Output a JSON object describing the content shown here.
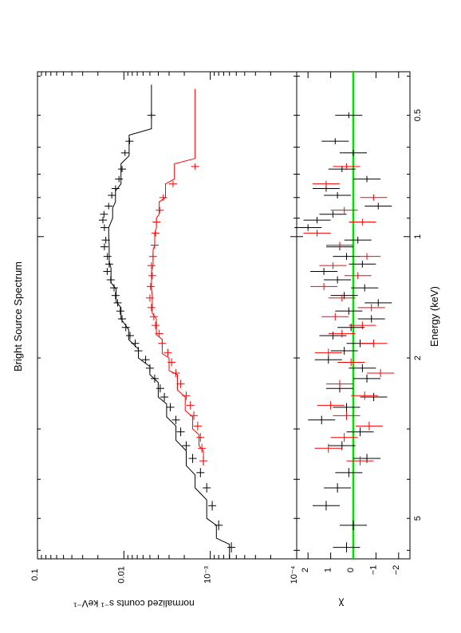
{
  "chart_data": [
    {
      "type": "line",
      "title": "Bright Source Spectrum",
      "xlabel": "Energy (keV)",
      "ylabel": "normalized counts s⁻¹ keV⁻¹",
      "xscale": "log",
      "yscale": "log",
      "xlim": [
        0.39,
        6.3
      ],
      "ylim": [
        0.0001,
        0.1
      ],
      "ytick_labels": [
        {
          "value": 0.1,
          "label": "0.1"
        },
        {
          "value": 0.01,
          "label": "0.01"
        },
        {
          "value": 0.001,
          "label": "10⁻³"
        },
        {
          "value": 0.0001,
          "label": "10⁻⁴"
        }
      ],
      "series": [
        {
          "color": "#000000",
          "model": [
            [
              0.42,
              0.0048
            ],
            [
              0.54,
              0.0048
            ],
            [
              0.56,
              0.0087
            ],
            [
              0.63,
              0.0087
            ],
            [
              0.66,
              0.0108
            ],
            [
              0.74,
              0.0108
            ],
            [
              0.77,
              0.0125
            ],
            [
              0.82,
              0.0125
            ],
            [
              0.85,
              0.0135
            ],
            [
              0.9,
              0.0135
            ],
            [
              0.95,
              0.015
            ],
            [
              1.0,
              0.015
            ],
            [
              1.05,
              0.0148
            ],
            [
              1.15,
              0.0148
            ],
            [
              1.2,
              0.0141
            ],
            [
              1.3,
              0.0141
            ],
            [
              1.35,
              0.0123
            ],
            [
              1.45,
              0.0123
            ],
            [
              1.5,
              0.0108
            ],
            [
              1.6,
              0.0108
            ],
            [
              1.7,
              0.0088
            ],
            [
              1.8,
              0.0088
            ],
            [
              1.9,
              0.0068
            ],
            [
              2.0,
              0.0068
            ],
            [
              2.1,
              0.005
            ],
            [
              2.2,
              0.005
            ],
            [
              2.3,
              0.004
            ],
            [
              2.5,
              0.004
            ],
            [
              2.6,
              0.0032
            ],
            [
              2.8,
              0.0032
            ],
            [
              2.95,
              0.0025
            ],
            [
              3.2,
              0.0025
            ],
            [
              3.4,
              0.0019
            ],
            [
              3.7,
              0.0019
            ],
            [
              3.9,
              0.0015
            ],
            [
              4.2,
              0.0015
            ],
            [
              4.5,
              0.0011
            ],
            [
              5.0,
              0.0011
            ],
            [
              5.2,
              0.00085
            ],
            [
              5.6,
              0.00085
            ],
            [
              5.8,
              0.0006
            ],
            [
              6.3,
              0.0006
            ]
          ],
          "points": [
            [
              0.5,
              0.0048
            ],
            [
              0.58,
              0.0086
            ],
            [
              0.62,
              0.0097
            ],
            [
              0.68,
              0.0105
            ],
            [
              0.72,
              0.0114
            ],
            [
              0.76,
              0.0125
            ],
            [
              0.79,
              0.0138
            ],
            [
              0.84,
              0.015
            ],
            [
              0.88,
              0.017
            ],
            [
              0.91,
              0.0175
            ],
            [
              0.95,
              0.0168
            ],
            [
              1.02,
              0.0162
            ],
            [
              1.06,
              0.0168
            ],
            [
              1.12,
              0.0155
            ],
            [
              1.17,
              0.0148
            ],
            [
              1.22,
              0.0156
            ],
            [
              1.28,
              0.0142
            ],
            [
              1.34,
              0.013
            ],
            [
              1.4,
              0.0125
            ],
            [
              1.46,
              0.0118
            ],
            [
              1.53,
              0.011
            ],
            [
              1.6,
              0.0105
            ],
            [
              1.68,
              0.0095
            ],
            [
              1.76,
              0.0085
            ],
            [
              1.84,
              0.0074
            ],
            [
              1.92,
              0.0068
            ],
            [
              2.02,
              0.0056
            ],
            [
              2.12,
              0.005
            ],
            [
              2.25,
              0.0044
            ],
            [
              2.38,
              0.0038
            ],
            [
              2.5,
              0.0034
            ],
            [
              2.65,
              0.0029
            ],
            [
              2.85,
              0.0025
            ],
            [
              3.05,
              0.0022
            ],
            [
              3.3,
              0.0019
            ],
            [
              3.55,
              0.0016
            ],
            [
              3.85,
              0.0013
            ],
            [
              4.2,
              0.0011
            ],
            [
              4.65,
              0.00095
            ],
            [
              5.2,
              0.0008
            ],
            [
              5.9,
              0.00057
            ]
          ]
        },
        {
          "color": "#ff0000",
          "model": [
            [
              0.43,
              0.0015
            ],
            [
              0.64,
              0.0015
            ],
            [
              0.66,
              0.0026
            ],
            [
              0.72,
              0.0026
            ],
            [
              0.74,
              0.0033
            ],
            [
              0.8,
              0.0033
            ],
            [
              0.82,
              0.0039
            ],
            [
              0.88,
              0.0039
            ],
            [
              0.9,
              0.0042
            ],
            [
              0.95,
              0.0042
            ],
            [
              0.98,
              0.0044
            ],
            [
              1.05,
              0.0044
            ],
            [
              1.08,
              0.0046
            ],
            [
              1.18,
              0.0046
            ],
            [
              1.22,
              0.0048
            ],
            [
              1.35,
              0.0048
            ],
            [
              1.4,
              0.0047
            ],
            [
              1.55,
              0.0047
            ],
            [
              1.6,
              0.0042
            ],
            [
              1.75,
              0.0042
            ],
            [
              1.8,
              0.0036
            ],
            [
              1.95,
              0.0036
            ],
            [
              2.0,
              0.003
            ],
            [
              2.15,
              0.003
            ],
            [
              2.2,
              0.0024
            ],
            [
              2.4,
              0.0024
            ],
            [
              2.5,
              0.00195
            ],
            [
              2.7,
              0.00195
            ],
            [
              2.8,
              0.0016
            ],
            [
              3.0,
              0.0016
            ],
            [
              3.1,
              0.00135
            ],
            [
              3.3,
              0.00135
            ],
            [
              3.4,
              0.0012
            ],
            [
              3.7,
              0.0012
            ]
          ],
          "points": [
            [
              0.67,
              0.0015
            ],
            [
              0.74,
              0.0027
            ],
            [
              0.8,
              0.0035
            ],
            [
              0.86,
              0.00385
            ],
            [
              0.92,
              0.0042
            ],
            [
              0.98,
              0.0043
            ],
            [
              1.05,
              0.0044
            ],
            [
              1.12,
              0.0046
            ],
            [
              1.18,
              0.0048
            ],
            [
              1.25,
              0.0047
            ],
            [
              1.33,
              0.0049
            ],
            [
              1.42,
              0.005
            ],
            [
              1.5,
              0.0048
            ],
            [
              1.58,
              0.0045
            ],
            [
              1.66,
              0.0043
            ],
            [
              1.74,
              0.0039
            ],
            [
              1.84,
              0.0036
            ],
            [
              1.94,
              0.0031
            ],
            [
              2.05,
              0.0028
            ],
            [
              2.18,
              0.0025
            ],
            [
              2.32,
              0.0022
            ],
            [
              2.48,
              0.0019
            ],
            [
              2.62,
              0.0017
            ],
            [
              2.78,
              0.00155
            ],
            [
              2.95,
              0.0014
            ],
            [
              3.15,
              0.0013
            ],
            [
              3.35,
              0.00125
            ],
            [
              3.6,
              0.0012
            ]
          ]
        }
      ]
    },
    {
      "type": "scatter",
      "xlabel": "Energy (keV)",
      "ylabel": "χ",
      "xscale": "log",
      "xlim": [
        0.39,
        6.3
      ],
      "ylim": [
        -2.5,
        2.5
      ],
      "xtick_labels": [
        {
          "value": 0.5,
          "label": "0.5"
        },
        {
          "value": 1,
          "label": "1"
        },
        {
          "value": 2,
          "label": "2"
        },
        {
          "value": 5,
          "label": "5"
        }
      ],
      "ytick_labels": [
        {
          "value": 2,
          "label": "2"
        },
        {
          "value": 1,
          "label": "1"
        },
        {
          "value": 0,
          "label": "0"
        },
        {
          "value": -1,
          "label": "−1"
        },
        {
          "value": -2,
          "label": "−2"
        }
      ],
      "reference_line": {
        "y": 0,
        "color": "#00dd00"
      },
      "series": [
        {
          "color": "#000000",
          "points": [
            [
              0.5,
              0.2
            ],
            [
              0.58,
              0.8
            ],
            [
              0.62,
              0.0
            ],
            [
              0.68,
              0.5
            ],
            [
              0.72,
              -0.6
            ],
            [
              0.76,
              1.2
            ],
            [
              0.79,
              0.7
            ],
            [
              0.84,
              -1.1
            ],
            [
              0.88,
              0.9
            ],
            [
              0.91,
              1.6
            ],
            [
              0.95,
              2.0
            ],
            [
              1.02,
              -0.2
            ],
            [
              1.06,
              0.6
            ],
            [
              1.12,
              0.3
            ],
            [
              1.17,
              -0.4
            ],
            [
              1.22,
              1.3
            ],
            [
              1.28,
              0.7
            ],
            [
              1.34,
              -0.5
            ],
            [
              1.4,
              0.4
            ],
            [
              1.46,
              -1.1
            ],
            [
              1.53,
              0.2
            ],
            [
              1.6,
              -0.8
            ],
            [
              1.68,
              0.1
            ],
            [
              1.76,
              0.9
            ],
            [
              1.84,
              -0.3
            ],
            [
              1.92,
              0.4
            ],
            [
              2.02,
              1.1
            ],
            [
              2.12,
              -0.4
            ],
            [
              2.25,
              -0.6
            ],
            [
              2.38,
              0.6
            ],
            [
              2.5,
              -0.9
            ],
            [
              2.65,
              0.3
            ],
            [
              2.85,
              1.4
            ],
            [
              3.05,
              -0.3
            ],
            [
              3.3,
              0.5
            ],
            [
              3.55,
              -0.6
            ],
            [
              3.85,
              0.2
            ],
            [
              4.2,
              0.7
            ],
            [
              4.65,
              1.2
            ],
            [
              5.2,
              0.0
            ],
            [
              5.9,
              0.3
            ]
          ]
        },
        {
          "color": "#ff0000",
          "points": [
            [
              0.67,
              0.3
            ],
            [
              0.74,
              1.2
            ],
            [
              0.8,
              -0.9
            ],
            [
              0.86,
              0.4
            ],
            [
              0.92,
              -0.4
            ],
            [
              0.98,
              1.6
            ],
            [
              1.05,
              0.6
            ],
            [
              1.12,
              -0.6
            ],
            [
              1.18,
              0.9
            ],
            [
              1.25,
              -0.2
            ],
            [
              1.33,
              1.3
            ],
            [
              1.42,
              0.5
            ],
            [
              1.5,
              -0.8
            ],
            [
              1.58,
              0.8
            ],
            [
              1.66,
              -0.4
            ],
            [
              1.74,
              0.5
            ],
            [
              1.84,
              -0.9
            ],
            [
              1.94,
              1.1
            ],
            [
              2.05,
              0.1
            ],
            [
              2.18,
              -1.2
            ],
            [
              2.32,
              0.6
            ],
            [
              2.48,
              -0.5
            ],
            [
              2.62,
              1.0
            ],
            [
              2.78,
              0.3
            ],
            [
              2.95,
              -0.7
            ],
            [
              3.15,
              0.4
            ],
            [
              3.35,
              1.1
            ],
            [
              3.6,
              -0.3
            ]
          ]
        }
      ]
    }
  ]
}
